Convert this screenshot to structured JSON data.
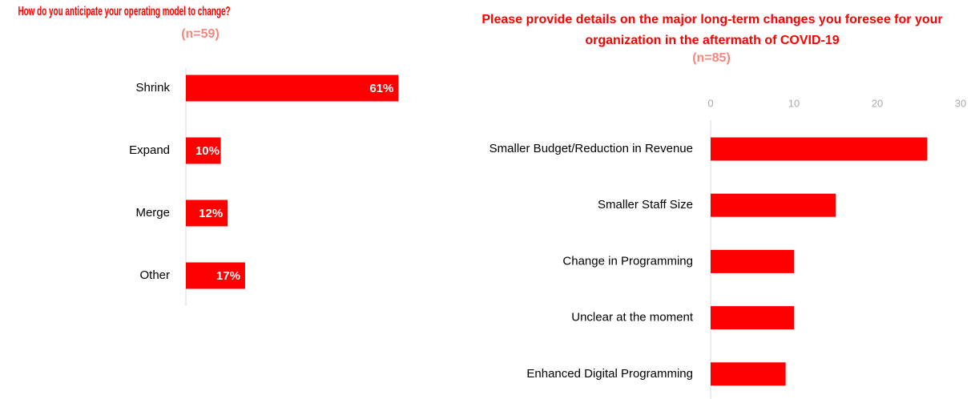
{
  "chart_data": [
    {
      "type": "bar",
      "orientation": "horizontal",
      "title": "How do you anticipate your operating model to change?",
      "subtitle": "(n=59)",
      "categories": [
        "Shrink",
        "Expand",
        "Merge",
        "Other"
      ],
      "values": [
        61,
        10,
        12,
        17
      ],
      "value_labels": [
        "61%",
        "10%",
        "12%",
        "17%"
      ],
      "color": "#ff0000"
    },
    {
      "type": "bar",
      "orientation": "horizontal",
      "title": "Please provide details on the major long-term changes you foresee for your organization in the aftermath of COVID-19",
      "subtitle": "(n=85)",
      "categories": [
        "Smaller Budget/Reduction in Revenue",
        "Smaller Staff Size",
        "Change in Programming",
        "Unclear at the moment",
        "Enhanced Digital Programming"
      ],
      "values": [
        26,
        15,
        10,
        10,
        9
      ],
      "color": "#ff0000",
      "xlim": [
        0,
        30
      ],
      "xticks": [
        0,
        10,
        20,
        30
      ]
    }
  ]
}
